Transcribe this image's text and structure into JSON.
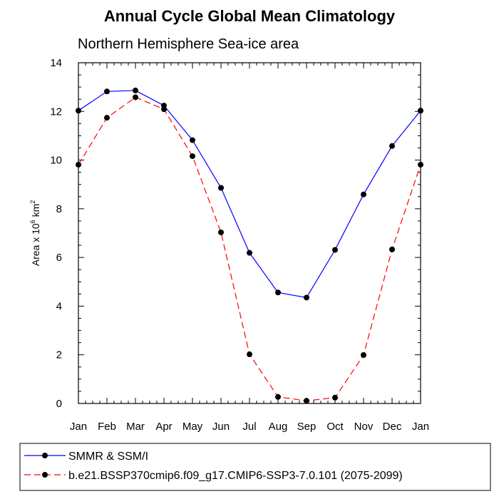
{
  "chart_data": {
    "type": "line",
    "title": "Annual Cycle Global Mean Climatology",
    "subtitle": "Northern Hemisphere Sea-ice area",
    "ylabel": {
      "prefix": "Area x 10",
      "sup1": "6",
      "mid": " km",
      "sup2": "2"
    },
    "xlabel": "",
    "categories": [
      "Jan",
      "Feb",
      "Mar",
      "Apr",
      "May",
      "Jun",
      "Jul",
      "Aug",
      "Sep",
      "Oct",
      "Nov",
      "Dec",
      "Jan"
    ],
    "ylim": [
      0,
      14
    ],
    "yticks": [
      "0",
      "2",
      "4",
      "6",
      "8",
      "10",
      "12",
      "14"
    ],
    "grid": false,
    "legend_position": "bottom",
    "series": [
      {
        "name": "SMMR & SSM/I",
        "color": "#0000ff",
        "line_style": "solid",
        "marker": "filled-circle",
        "values": [
          12.03,
          12.82,
          12.86,
          12.24,
          10.82,
          8.86,
          6.19,
          4.56,
          4.35,
          6.31,
          8.59,
          10.58,
          12.03
        ]
      },
      {
        "name": "b.e21.BSSP370cmip6.f09_g17.CMIP6-SSP3-7.0.101 (2075-2099)",
        "color": "#ff0000",
        "line_style": "dashed",
        "marker": "filled-circle",
        "values": [
          9.81,
          11.74,
          12.58,
          12.09,
          10.16,
          7.03,
          2.02,
          0.27,
          0.11,
          0.24,
          1.99,
          6.33,
          9.81
        ]
      }
    ]
  }
}
